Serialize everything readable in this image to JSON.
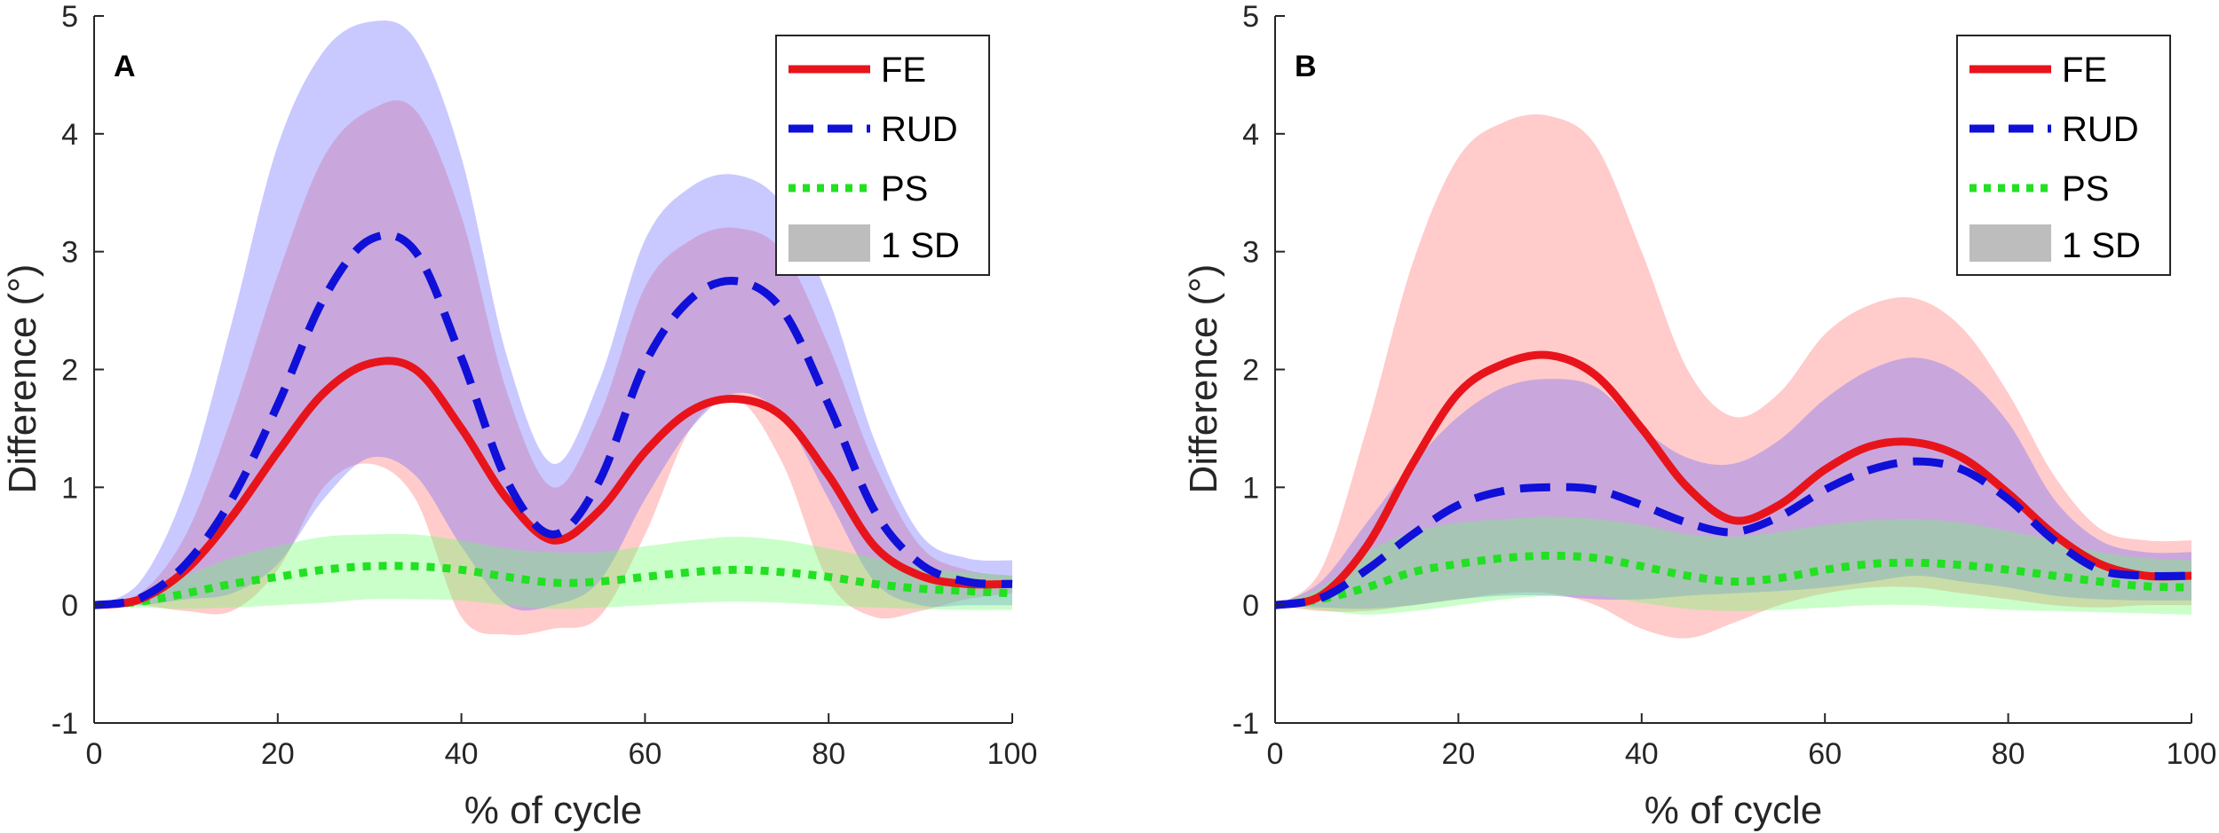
{
  "colors": {
    "FE": "#e8141c",
    "RUD": "#1010d8",
    "PS": "#22e022",
    "FE_band": "#ff6b6b",
    "RUD_band": "#6464ff",
    "PS_band": "#66ff66",
    "SD_legend": "#bdbdbd"
  },
  "legend": {
    "fe": "FE",
    "rud": "RUD",
    "ps": "PS",
    "sd": "1 SD"
  },
  "chart_data": [
    {
      "type": "line",
      "panel_label": "A",
      "xlabel": "% of cycle",
      "ylabel": "Difference (°)",
      "xlim": [
        0,
        100
      ],
      "ylim": [
        -1,
        5
      ],
      "xticks": [
        0,
        20,
        40,
        60,
        80,
        100
      ],
      "yticks": [
        -1,
        0,
        1,
        2,
        3,
        4,
        5
      ],
      "legend_position": "top-right",
      "x": [
        0,
        5,
        10,
        15,
        20,
        25,
        30,
        35,
        40,
        45,
        50,
        55,
        60,
        65,
        70,
        75,
        80,
        85,
        90,
        95,
        100
      ],
      "series": [
        {
          "name": "FE",
          "style": "solid",
          "values": [
            0,
            0.05,
            0.3,
            0.75,
            1.3,
            1.8,
            2.05,
            2.0,
            1.5,
            0.9,
            0.55,
            0.8,
            1.3,
            1.65,
            1.75,
            1.6,
            1.1,
            0.5,
            0.25,
            0.18,
            0.18
          ],
          "sd_upper": [
            0,
            0.1,
            0.6,
            1.6,
            2.8,
            3.8,
            4.2,
            4.2,
            3.3,
            1.8,
            1.0,
            1.6,
            2.7,
            3.1,
            3.2,
            3.0,
            2.2,
            1.2,
            0.5,
            0.3,
            0.25
          ],
          "sd_lower": [
            0,
            0,
            -0.05,
            -0.05,
            0.3,
            1.0,
            1.2,
            0.9,
            -0.1,
            -0.25,
            -0.2,
            -0.1,
            0.6,
            1.5,
            1.75,
            1.2,
            0.2,
            -0.1,
            -0.05,
            0.05,
            0.1
          ]
        },
        {
          "name": "RUD",
          "style": "dashed",
          "values": [
            0,
            0.06,
            0.35,
            0.9,
            1.7,
            2.6,
            3.1,
            3.0,
            2.1,
            1.05,
            0.6,
            1.05,
            2.05,
            2.6,
            2.75,
            2.5,
            1.7,
            0.8,
            0.35,
            0.2,
            0.18
          ],
          "sd_upper": [
            0,
            0.2,
            1.0,
            2.4,
            3.9,
            4.7,
            4.95,
            4.8,
            3.8,
            2.1,
            1.2,
            1.9,
            3.1,
            3.55,
            3.65,
            3.4,
            2.6,
            1.4,
            0.6,
            0.4,
            0.38
          ],
          "sd_lower": [
            0,
            0,
            0.05,
            0.1,
            0.35,
            0.9,
            1.25,
            1.1,
            0.5,
            0.0,
            0.0,
            0.2,
            0.9,
            1.5,
            1.8,
            1.6,
            0.9,
            0.2,
            0.0,
            0.0,
            0.0
          ]
        },
        {
          "name": "PS",
          "style": "dotted",
          "values": [
            0,
            0.03,
            0.1,
            0.18,
            0.24,
            0.3,
            0.33,
            0.33,
            0.3,
            0.24,
            0.19,
            0.2,
            0.24,
            0.28,
            0.3,
            0.28,
            0.24,
            0.18,
            0.14,
            0.12,
            0.1
          ],
          "sd_upper": [
            0,
            0.08,
            0.25,
            0.4,
            0.5,
            0.58,
            0.6,
            0.6,
            0.55,
            0.48,
            0.45,
            0.45,
            0.5,
            0.55,
            0.58,
            0.55,
            0.48,
            0.4,
            0.32,
            0.28,
            0.25
          ],
          "sd_lower": [
            0,
            -0.02,
            -0.03,
            -0.02,
            0.0,
            0.02,
            0.05,
            0.05,
            0.04,
            0.0,
            -0.03,
            -0.02,
            0.0,
            0.02,
            0.03,
            0.02,
            0.0,
            -0.02,
            -0.03,
            -0.04,
            -0.04
          ]
        }
      ]
    },
    {
      "type": "line",
      "panel_label": "B",
      "xlabel": "% of cycle",
      "ylabel": "Difference (°)",
      "xlim": [
        0,
        100
      ],
      "ylim": [
        -1,
        5
      ],
      "xticks": [
        0,
        20,
        40,
        60,
        80,
        100
      ],
      "yticks": [
        -1,
        0,
        1,
        2,
        3,
        4,
        5
      ],
      "legend_position": "top-right",
      "x": [
        0,
        5,
        10,
        15,
        20,
        25,
        30,
        35,
        40,
        45,
        50,
        55,
        60,
        65,
        70,
        75,
        80,
        85,
        90,
        95,
        100
      ],
      "series": [
        {
          "name": "FE",
          "style": "solid",
          "values": [
            0,
            0.08,
            0.5,
            1.2,
            1.8,
            2.05,
            2.12,
            1.95,
            1.5,
            1.0,
            0.72,
            0.85,
            1.15,
            1.35,
            1.38,
            1.25,
            0.95,
            0.6,
            0.35,
            0.25,
            0.25
          ],
          "sd_upper": [
            0,
            0.3,
            1.5,
            2.9,
            3.8,
            4.1,
            4.15,
            3.9,
            3.0,
            2.0,
            1.6,
            1.8,
            2.3,
            2.55,
            2.6,
            2.35,
            1.8,
            1.1,
            0.65,
            0.55,
            0.55
          ],
          "sd_lower": [
            0,
            -0.05,
            -0.05,
            0.0,
            0.05,
            0.1,
            0.1,
            0.0,
            -0.2,
            -0.28,
            -0.15,
            0.0,
            0.1,
            0.15,
            0.15,
            0.1,
            0.05,
            0.0,
            -0.02,
            0.0,
            0.0
          ]
        },
        {
          "name": "RUD",
          "style": "dashed",
          "values": [
            0,
            0.06,
            0.3,
            0.6,
            0.85,
            0.97,
            1.0,
            0.98,
            0.85,
            0.7,
            0.62,
            0.75,
            0.98,
            1.15,
            1.22,
            1.15,
            0.9,
            0.55,
            0.3,
            0.25,
            0.25
          ],
          "sd_upper": [
            0,
            0.2,
            0.7,
            1.2,
            1.6,
            1.85,
            1.92,
            1.85,
            1.5,
            1.25,
            1.2,
            1.4,
            1.75,
            2.0,
            2.1,
            1.95,
            1.55,
            0.9,
            0.55,
            0.45,
            0.45
          ],
          "sd_lower": [
            0,
            -0.02,
            -0.03,
            0.0,
            0.05,
            0.08,
            0.08,
            0.05,
            0.05,
            0.08,
            0.1,
            0.12,
            0.15,
            0.2,
            0.25,
            0.2,
            0.15,
            0.08,
            0.05,
            0.04,
            0.04
          ]
        },
        {
          "name": "PS",
          "style": "dotted",
          "values": [
            0,
            0.05,
            0.15,
            0.28,
            0.35,
            0.4,
            0.42,
            0.4,
            0.33,
            0.25,
            0.2,
            0.23,
            0.3,
            0.35,
            0.36,
            0.34,
            0.3,
            0.25,
            0.2,
            0.16,
            0.15
          ],
          "sd_upper": [
            0,
            0.15,
            0.45,
            0.62,
            0.7,
            0.73,
            0.75,
            0.73,
            0.68,
            0.6,
            0.58,
            0.62,
            0.68,
            0.72,
            0.73,
            0.7,
            0.63,
            0.55,
            0.45,
            0.4,
            0.38
          ],
          "sd_lower": [
            0,
            -0.04,
            -0.08,
            -0.05,
            0.0,
            0.05,
            0.08,
            0.08,
            0.02,
            -0.03,
            -0.05,
            -0.04,
            -0.02,
            0.0,
            0.0,
            -0.02,
            -0.04,
            -0.05,
            -0.06,
            -0.07,
            -0.08
          ]
        }
      ]
    }
  ]
}
